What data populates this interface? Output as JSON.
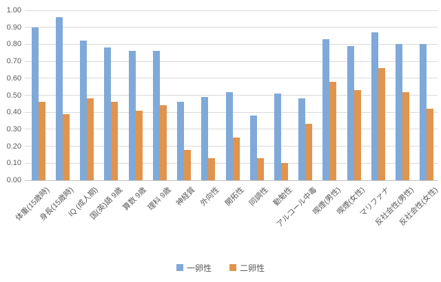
{
  "chart_data": {
    "type": "bar",
    "title": "",
    "categories": [
      "体重(15歳時)",
      "身長(15歳時)",
      "IQ (成人期)",
      "国(英)語 9歳",
      "算数 9歳",
      "理科 9歳",
      "神経質",
      "外向性",
      "開拓性",
      "同調性",
      "勤勉性",
      "アルコール中毒",
      "喫煙(男性)",
      "喫煙(女性)",
      "マリファナ",
      "反社会性(男性)",
      "反社会性(女性)"
    ],
    "series": [
      {
        "name": "一卵性",
        "color": "#7fa9d8",
        "values": [
          0.9,
          0.96,
          0.82,
          0.78,
          0.76,
          0.76,
          0.46,
          0.49,
          0.52,
          0.38,
          0.51,
          0.48,
          0.83,
          0.79,
          0.87,
          0.8,
          0.8
        ]
      },
      {
        "name": "二卵性",
        "color": "#e1944e",
        "values": [
          0.46,
          0.39,
          0.48,
          0.46,
          0.41,
          0.44,
          0.18,
          0.13,
          0.25,
          0.13,
          0.1,
          0.33,
          0.58,
          0.53,
          0.66,
          0.52,
          0.42
        ]
      }
    ],
    "ylim": [
      0,
      1
    ],
    "y_ticks": [
      "0.00",
      "0.10",
      "0.20",
      "0.30",
      "0.40",
      "0.50",
      "0.60",
      "0.70",
      "0.80",
      "0.90",
      "1.00"
    ],
    "grid": true,
    "legend_position": "bottom",
    "gridline_color": "#d9d9d9",
    "axis_text_color": "#595959"
  }
}
